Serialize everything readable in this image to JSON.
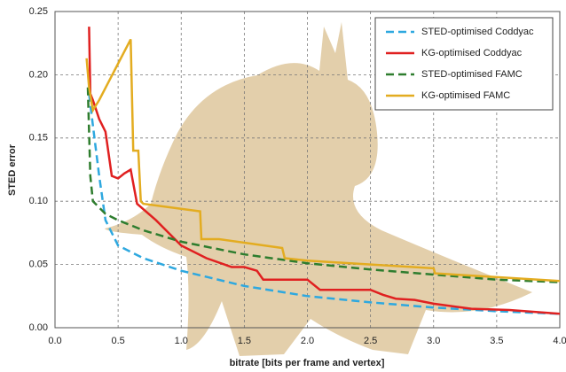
{
  "chart_data": {
    "type": "line",
    "xlabel": "bitrate [bits per frame and vertex]",
    "ylabel": "STED error",
    "xlim": [
      0,
      4
    ],
    "ylim": [
      0,
      0.25
    ],
    "xticks": [
      {
        "value": 0,
        "label": "0.0"
      },
      0.5,
      {
        "value": 1,
        "label": "1.0"
      },
      1.5,
      {
        "value": 2,
        "label": "2.0"
      },
      2.5,
      {
        "value": 3,
        "label": "3.0"
      },
      3.5,
      {
        "value": 4,
        "label": "4.0"
      }
    ],
    "yticks": [
      {
        "value": 0,
        "label": "0.00"
      },
      0.05,
      {
        "value": 0.1,
        "label": "0.10"
      },
      0.15,
      {
        "value": 0.2,
        "label": "0.20"
      },
      0.25
    ],
    "grid": true,
    "legend": "upper right",
    "series": [
      {
        "name": "STED-optimised Coddyac",
        "color": "#2ea8df",
        "dashed": true,
        "x": [
          0.27,
          0.3,
          0.35,
          0.4,
          0.5,
          0.7,
          1.0,
          1.5,
          2.0,
          2.5,
          3.0,
          3.5,
          4.0
        ],
        "values": [
          0.185,
          0.16,
          0.12,
          0.085,
          0.065,
          0.055,
          0.045,
          0.033,
          0.025,
          0.02,
          0.016,
          0.013,
          0.011
        ]
      },
      {
        "name": "KG-optimised Coddyac",
        "color": "#e02020",
        "dashed": false,
        "x": [
          0.27,
          0.28,
          0.3,
          0.35,
          0.4,
          0.45,
          0.5,
          0.55,
          0.6,
          0.65,
          0.8,
          1.0,
          1.2,
          1.4,
          1.5,
          1.6,
          1.65,
          1.8,
          2.0,
          2.1,
          2.5,
          2.6,
          2.7,
          2.85,
          3.0,
          3.3,
          3.6,
          4.0
        ],
        "values": [
          0.238,
          0.185,
          0.18,
          0.165,
          0.155,
          0.12,
          0.118,
          0.122,
          0.125,
          0.098,
          0.085,
          0.065,
          0.055,
          0.048,
          0.048,
          0.045,
          0.038,
          0.038,
          0.038,
          0.03,
          0.03,
          0.026,
          0.023,
          0.022,
          0.019,
          0.015,
          0.014,
          0.011
        ]
      },
      {
        "name": "STED-optimised FAMC",
        "color": "#2e7d2e",
        "dashed": true,
        "x": [
          0.26,
          0.28,
          0.3,
          0.35,
          0.4,
          0.5,
          0.7,
          1.0,
          1.5,
          2.0,
          2.5,
          3.0,
          3.5,
          4.0
        ],
        "values": [
          0.19,
          0.12,
          0.1,
          0.095,
          0.09,
          0.085,
          0.077,
          0.068,
          0.058,
          0.051,
          0.046,
          0.042,
          0.038,
          0.036
        ]
      },
      {
        "name": "KG-optimised FAMC",
        "color": "#e3ac20",
        "dashed": false,
        "x": [
          0.25,
          0.27,
          0.3,
          0.35,
          0.6,
          0.62,
          0.66,
          0.68,
          0.7,
          1.15,
          1.16,
          1.3,
          1.8,
          1.82,
          2.0,
          2.5,
          3.0,
          3.01,
          3.5,
          4.0
        ],
        "values": [
          0.213,
          0.19,
          0.172,
          0.18,
          0.228,
          0.14,
          0.14,
          0.1,
          0.098,
          0.092,
          0.07,
          0.07,
          0.063,
          0.055,
          0.053,
          0.05,
          0.047,
          0.043,
          0.04,
          0.037
        ]
      }
    ]
  }
}
